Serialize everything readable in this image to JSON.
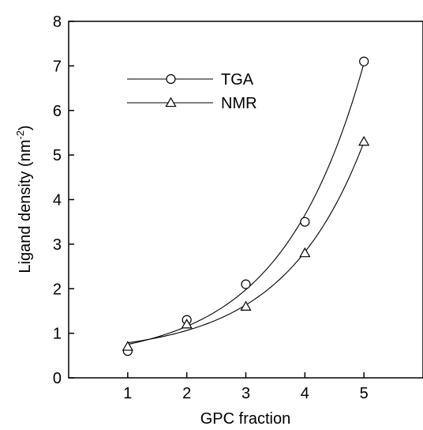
{
  "chart_data": {
    "type": "scatter",
    "xlabel": "GPC fraction",
    "ylabel_main": "Ligand density (nm",
    "ylabel_sup": "-2",
    "ylabel_close": ")",
    "xlim": [
      0,
      6
    ],
    "ylim": [
      0,
      8
    ],
    "xticks": [
      1,
      2,
      3,
      4,
      5
    ],
    "yticks": [
      0,
      1,
      2,
      3,
      4,
      5,
      6,
      7,
      8
    ],
    "grid": false,
    "legend_placement": "top-left",
    "series": [
      {
        "name": "TGA",
        "marker": "circle",
        "x": [
          1,
          2,
          3,
          4,
          5
        ],
        "y": [
          0.6,
          1.3,
          2.1,
          3.5,
          7.1
        ],
        "fit_curve": "exponential"
      },
      {
        "name": "NMR",
        "marker": "triangle",
        "x": [
          1,
          2,
          3,
          4,
          5
        ],
        "y": [
          0.7,
          1.2,
          1.6,
          2.8,
          5.3
        ],
        "fit_curve": "exponential"
      }
    ]
  }
}
